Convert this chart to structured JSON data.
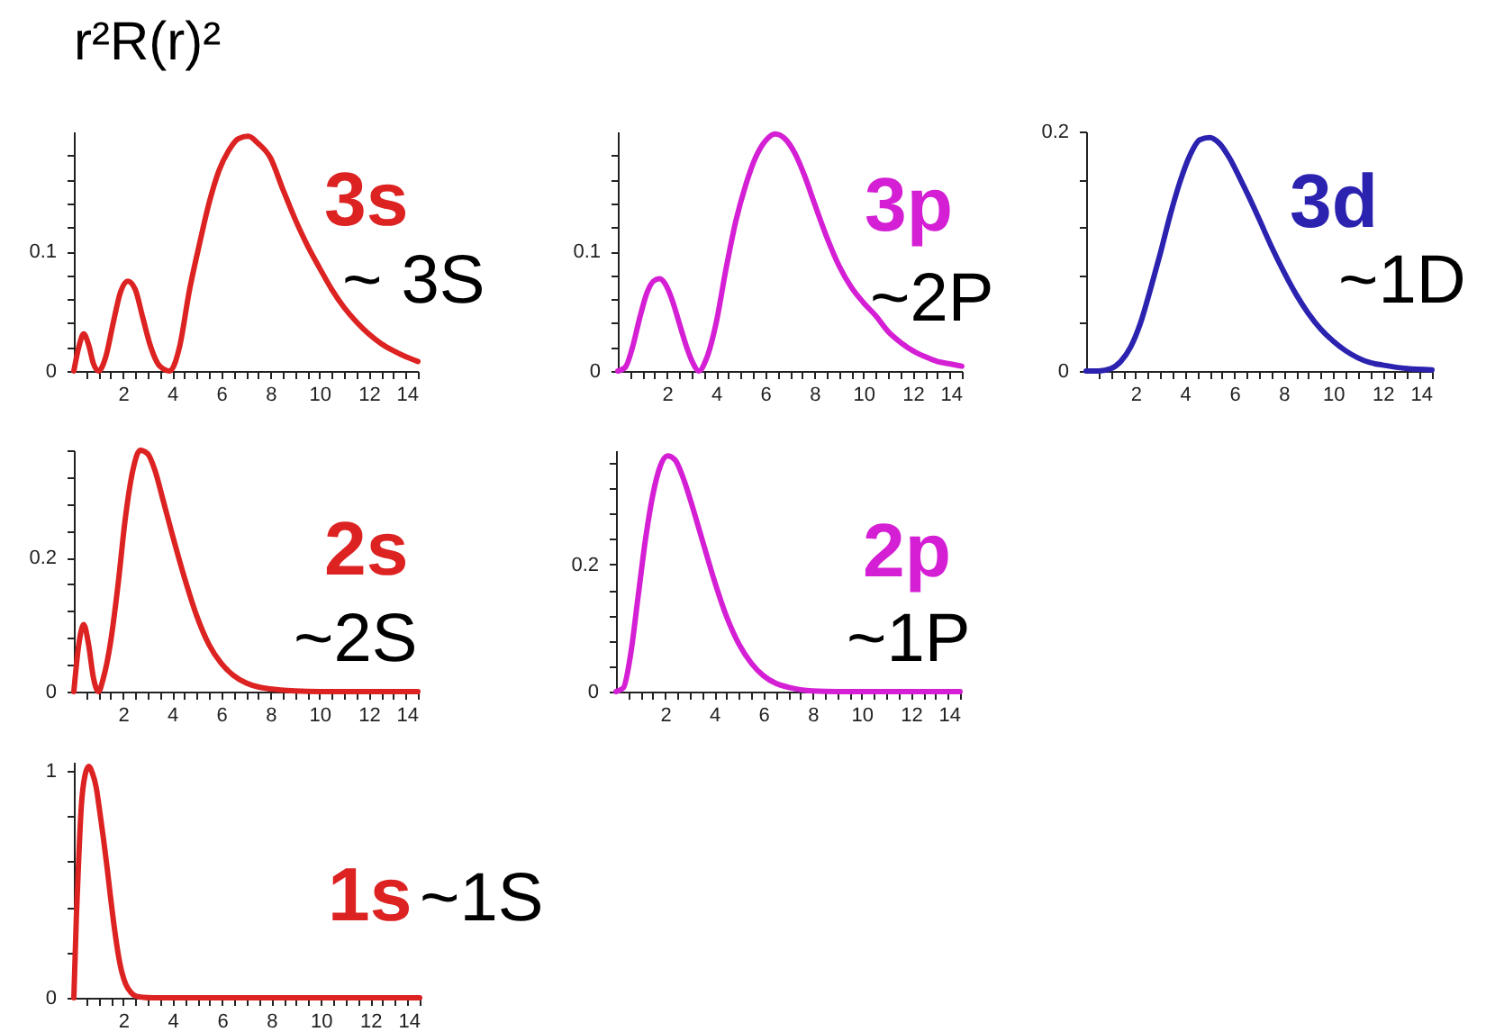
{
  "chart_data": [
    {
      "type": "line",
      "title": "r²R(r)²",
      "x": [
        0,
        0.2,
        0.4,
        0.6,
        0.8,
        1.0,
        1.3,
        1.6,
        1.9,
        2.2,
        2.5,
        2.8,
        3.1,
        3.5,
        3.9,
        4.3,
        4.7,
        5.1,
        5.5,
        5.9,
        6.3,
        6.7,
        7.1,
        7.5,
        8,
        8.5,
        9,
        9.5,
        10,
        10.5,
        11,
        11.5,
        12,
        12.5,
        13,
        13.5,
        14
      ],
      "series": [
        {
          "name": "3s",
          "color": "#dd2222",
          "values": [
            0,
            0.02,
            0.031,
            0.022,
            0.006,
            0,
            0.012,
            0.04,
            0.066,
            0.075,
            0.068,
            0.045,
            0.022,
            0.004,
            0,
            0.02,
            0.067,
            0.105,
            0.14,
            0.167,
            0.184,
            0.194,
            0.196,
            0.19,
            0.178,
            0.152,
            0.127,
            0.105,
            0.086,
            0.068,
            0.053,
            0.041,
            0.031,
            0.023,
            0.017,
            0.012,
            0.008
          ]
        }
      ],
      "annotations": [
        "~ 3S"
      ],
      "xlim": [
        0,
        14
      ],
      "ylim": [
        0,
        0.2
      ],
      "xticks": [
        {
          "value": 0.5,
          "label": null
        },
        {
          "value": 1,
          "label": null
        },
        {
          "value": 1.5,
          "label": null
        },
        2,
        {
          "value": 2.5,
          "label": null
        },
        {
          "value": 3,
          "label": null
        },
        {
          "value": 3.5,
          "label": null
        },
        4,
        {
          "value": 4.5,
          "label": null
        },
        {
          "value": 5,
          "label": null
        },
        {
          "value": 5.5,
          "label": null
        },
        6,
        {
          "value": 6.5,
          "label": null
        },
        {
          "value": 7,
          "label": null
        },
        {
          "value": 7.5,
          "label": null
        },
        8,
        {
          "value": 8.5,
          "label": null
        },
        {
          "value": 9,
          "label": null
        },
        {
          "value": 9.5,
          "label": null
        },
        10,
        {
          "value": 10.5,
          "label": null
        },
        {
          "value": 11,
          "label": null
        },
        {
          "value": 11.5,
          "label": null
        },
        12,
        {
          "value": 12.5,
          "label": null
        },
        {
          "value": 13,
          "label": null
        },
        {
          "value": 13.5,
          "label": null
        },
        14
      ],
      "yticks": [
        0,
        {
          "value": 0.02,
          "label": null
        },
        {
          "value": 0.04,
          "label": null
        },
        {
          "value": 0.06,
          "label": null
        },
        {
          "value": 0.08,
          "label": null
        },
        0.1,
        {
          "value": 0.12,
          "label": null
        },
        {
          "value": 0.14,
          "label": null
        },
        {
          "value": 0.16,
          "label": null
        },
        {
          "value": 0.18,
          "label": null
        }
      ]
    },
    {
      "type": "line",
      "x": [
        0,
        0.3,
        0.6,
        0.9,
        1.2,
        1.45,
        1.7,
        1.95,
        2.2,
        2.5,
        2.8,
        3.05,
        3.3,
        3.6,
        4.0,
        4.4,
        4.8,
        5.2,
        5.6,
        6.0,
        6.4,
        6.8,
        7.2,
        7.6,
        8.0,
        8.5,
        9.0,
        9.5,
        10,
        10.5,
        11,
        11.5,
        12,
        12.5,
        13,
        13.5,
        14
      ],
      "series": [
        {
          "name": "3p",
          "color": "#d41fd4",
          "values": [
            0,
            0.003,
            0.02,
            0.045,
            0.066,
            0.075,
            0.077,
            0.072,
            0.06,
            0.04,
            0.02,
            0.007,
            0,
            0.01,
            0.04,
            0.085,
            0.125,
            0.155,
            0.178,
            0.192,
            0.198,
            0.194,
            0.182,
            0.163,
            0.14,
            0.112,
            0.088,
            0.07,
            0.057,
            0.046,
            0.033,
            0.024,
            0.017,
            0.012,
            0.008,
            0.006,
            0.004
          ]
        }
      ],
      "annotations": [
        "~2P"
      ],
      "xlim": [
        0,
        14
      ],
      "ylim": [
        0,
        0.2
      ],
      "xticks": [
        {
          "value": 0.5,
          "label": null
        },
        {
          "value": 1,
          "label": null
        },
        {
          "value": 1.5,
          "label": null
        },
        2,
        {
          "value": 2.5,
          "label": null
        },
        {
          "value": 3,
          "label": null
        },
        {
          "value": 3.5,
          "label": null
        },
        4,
        {
          "value": 4.5,
          "label": null
        },
        {
          "value": 5,
          "label": null
        },
        {
          "value": 5.5,
          "label": null
        },
        6,
        {
          "value": 6.5,
          "label": null
        },
        {
          "value": 7,
          "label": null
        },
        {
          "value": 7.5,
          "label": null
        },
        8,
        {
          "value": 8.5,
          "label": null
        },
        {
          "value": 9,
          "label": null
        },
        {
          "value": 9.5,
          "label": null
        },
        10,
        {
          "value": 10.5,
          "label": null
        },
        {
          "value": 11,
          "label": null
        },
        {
          "value": 11.5,
          "label": null
        },
        12,
        {
          "value": 12.5,
          "label": null
        },
        {
          "value": 13,
          "label": null
        },
        {
          "value": 13.5,
          "label": null
        },
        14
      ],
      "yticks": [
        0,
        {
          "value": 0.02,
          "label": null
        },
        {
          "value": 0.04,
          "label": null
        },
        {
          "value": 0.06,
          "label": null
        },
        {
          "value": 0.08,
          "label": null
        },
        0.1,
        {
          "value": 0.12,
          "label": null
        },
        {
          "value": 0.14,
          "label": null
        },
        {
          "value": 0.16,
          "label": null
        },
        {
          "value": 0.18,
          "label": null
        }
      ]
    },
    {
      "type": "line",
      "x": [
        0,
        0.5,
        1,
        1.4,
        1.8,
        2.2,
        2.6,
        3,
        3.4,
        3.8,
        4.2,
        4.6,
        5,
        5.4,
        5.8,
        6.2,
        6.6,
        7,
        7.5,
        8,
        8.5,
        9,
        9.5,
        10,
        10.5,
        11,
        11.5,
        12,
        13,
        14
      ],
      "series": [
        {
          "name": "3d",
          "color": "#2b22b0",
          "values": [
            0,
            0,
            0.002,
            0.008,
            0.02,
            0.04,
            0.068,
            0.098,
            0.13,
            0.158,
            0.18,
            0.193,
            0.195,
            0.19,
            0.178,
            0.162,
            0.145,
            0.127,
            0.104,
            0.083,
            0.064,
            0.048,
            0.035,
            0.025,
            0.017,
            0.011,
            0.007,
            0.005,
            0.002,
            0.001
          ]
        }
      ],
      "annotations": [
        "~1D"
      ],
      "xlim": [
        0,
        14
      ],
      "ylim": [
        0,
        0.2
      ],
      "xticks": [
        {
          "value": 0.5,
          "label": null
        },
        {
          "value": 1,
          "label": null
        },
        {
          "value": 1.5,
          "label": null
        },
        2,
        {
          "value": 2.5,
          "label": null
        },
        {
          "value": 3,
          "label": null
        },
        {
          "value": 3.5,
          "label": null
        },
        4,
        {
          "value": 4.5,
          "label": null
        },
        {
          "value": 5,
          "label": null
        },
        {
          "value": 5.5,
          "label": null
        },
        6,
        {
          "value": 6.5,
          "label": null
        },
        {
          "value": 7,
          "label": null
        },
        {
          "value": 7.5,
          "label": null
        },
        8,
        {
          "value": 8.5,
          "label": null
        },
        {
          "value": 9,
          "label": null
        },
        {
          "value": 9.5,
          "label": null
        },
        10,
        {
          "value": 10.5,
          "label": null
        },
        {
          "value": 11,
          "label": null
        },
        {
          "value": 11.5,
          "label": null
        },
        12,
        {
          "value": 12.5,
          "label": null
        },
        {
          "value": 13,
          "label": null
        },
        {
          "value": 13.5,
          "label": null
        },
        14
      ],
      "yticks": [
        0,
        {
          "value": 0.04,
          "label": null
        },
        {
          "value": 0.08,
          "label": null
        },
        {
          "value": 0.12,
          "label": null
        },
        {
          "value": 0.16,
          "label": null
        },
        0.2
      ]
    },
    {
      "type": "line",
      "x": [
        0,
        0.2,
        0.4,
        0.6,
        0.8,
        1,
        1.2,
        1.5,
        1.8,
        2.1,
        2.4,
        2.7,
        3,
        3.3,
        3.6,
        4,
        4.5,
        5,
        5.5,
        6,
        6.5,
        7,
        7.5,
        8,
        9,
        10,
        14
      ],
      "series": [
        {
          "name": "2s",
          "color": "#dd2222",
          "values": [
            0,
            0.07,
            0.1,
            0.07,
            0.02,
            0,
            0.02,
            0.075,
            0.16,
            0.26,
            0.33,
            0.36,
            0.355,
            0.33,
            0.29,
            0.235,
            0.17,
            0.113,
            0.07,
            0.042,
            0.024,
            0.013,
            0.007,
            0.004,
            0.001,
            0,
            0
          ]
        }
      ],
      "annotations": [
        "~2S"
      ],
      "xlim": [
        0,
        14
      ],
      "ylim": [
        0,
        0.36
      ],
      "xticks": [
        {
          "value": 0.5,
          "label": null
        },
        {
          "value": 1,
          "label": null
        },
        {
          "value": 1.5,
          "label": null
        },
        2,
        {
          "value": 2.5,
          "label": null
        },
        {
          "value": 3,
          "label": null
        },
        {
          "value": 3.5,
          "label": null
        },
        4,
        {
          "value": 4.5,
          "label": null
        },
        {
          "value": 5,
          "label": null
        },
        {
          "value": 5.5,
          "label": null
        },
        6,
        {
          "value": 6.5,
          "label": null
        },
        {
          "value": 7,
          "label": null
        },
        {
          "value": 7.5,
          "label": null
        },
        8,
        {
          "value": 8.5,
          "label": null
        },
        {
          "value": 9,
          "label": null
        },
        {
          "value": 9.5,
          "label": null
        },
        10,
        {
          "value": 10.5,
          "label": null
        },
        {
          "value": 11,
          "label": null
        },
        {
          "value": 11.5,
          "label": null
        },
        12,
        {
          "value": 12.5,
          "label": null
        },
        {
          "value": 13,
          "label": null
        },
        {
          "value": 13.5,
          "label": null
        },
        14
      ],
      "yticks": [
        0,
        {
          "value": 0.04,
          "label": null
        },
        {
          "value": 0.08,
          "label": null
        },
        {
          "value": 0.12,
          "label": null
        },
        {
          "value": 0.16,
          "label": null
        },
        0.2,
        {
          "value": 0.24,
          "label": null
        },
        {
          "value": 0.28,
          "label": null
        },
        {
          "value": 0.32,
          "label": null
        },
        {
          "value": 0.36,
          "label": null
        }
      ]
    },
    {
      "type": "line",
      "x": [
        0,
        0.3,
        0.6,
        0.9,
        1.2,
        1.5,
        1.8,
        2.1,
        2.4,
        2.7,
        3,
        3.5,
        4,
        4.5,
        5,
        5.5,
        6,
        6.5,
        7,
        7.5,
        8,
        9,
        14
      ],
      "series": [
        {
          "name": "2p",
          "color": "#d41fd4",
          "values": [
            0,
            0.006,
            0.06,
            0.15,
            0.24,
            0.31,
            0.355,
            0.371,
            0.365,
            0.34,
            0.305,
            0.24,
            0.175,
            0.118,
            0.075,
            0.045,
            0.025,
            0.013,
            0.007,
            0.003,
            0.001,
            0,
            0
          ]
        }
      ],
      "annotations": [
        "~1P"
      ],
      "xlim": [
        0,
        14
      ],
      "ylim": [
        0,
        0.38
      ],
      "xticks": [
        {
          "value": 0.5,
          "label": null
        },
        {
          "value": 1,
          "label": null
        },
        {
          "value": 1.5,
          "label": null
        },
        2,
        {
          "value": 2.5,
          "label": null
        },
        {
          "value": 3,
          "label": null
        },
        {
          "value": 3.5,
          "label": null
        },
        4,
        {
          "value": 4.5,
          "label": null
        },
        {
          "value": 5,
          "label": null
        },
        {
          "value": 5.5,
          "label": null
        },
        6,
        {
          "value": 6.5,
          "label": null
        },
        {
          "value": 7,
          "label": null
        },
        {
          "value": 7.5,
          "label": null
        },
        8,
        {
          "value": 8.5,
          "label": null
        },
        {
          "value": 9,
          "label": null
        },
        {
          "value": 9.5,
          "label": null
        },
        10,
        {
          "value": 10.5,
          "label": null
        },
        {
          "value": 11,
          "label": null
        },
        {
          "value": 11.5,
          "label": null
        },
        12,
        {
          "value": 12.5,
          "label": null
        },
        {
          "value": 13,
          "label": null
        },
        {
          "value": 13.5,
          "label": null
        },
        14
      ],
      "yticks": [
        0,
        {
          "value": 0.04,
          "label": null
        },
        {
          "value": 0.08,
          "label": null
        },
        {
          "value": 0.12,
          "label": null
        },
        {
          "value": 0.16,
          "label": null
        },
        0.2,
        {
          "value": 0.24,
          "label": null
        },
        {
          "value": 0.28,
          "label": null
        },
        {
          "value": 0.32,
          "label": null
        },
        {
          "value": 0.36,
          "label": null
        }
      ]
    },
    {
      "type": "line",
      "x": [
        0,
        0.1,
        0.2,
        0.3,
        0.45,
        0.6,
        0.75,
        0.9,
        1.05,
        1.2,
        1.35,
        1.5,
        1.65,
        1.8,
        1.95,
        2.1,
        2.3,
        2.5,
        2.8,
        3.2,
        14
      ],
      "series": [
        {
          "name": "1s",
          "color": "#dd2222",
          "values": [
            0,
            0.35,
            0.62,
            0.84,
            0.98,
            1.02,
            0.99,
            0.93,
            0.82,
            0.7,
            0.57,
            0.43,
            0.3,
            0.19,
            0.11,
            0.06,
            0.025,
            0.008,
            0.002,
            0,
            0
          ]
        }
      ],
      "annotations": [
        "~1S"
      ],
      "xlim": [
        0,
        14
      ],
      "ylim": [
        0,
        1.04
      ],
      "xticks": [
        {
          "value": 0.5,
          "label": null
        },
        {
          "value": 1,
          "label": null
        },
        {
          "value": 1.5,
          "label": null
        },
        2,
        {
          "value": 2.5,
          "label": null
        },
        {
          "value": 3,
          "label": null
        },
        {
          "value": 3.5,
          "label": null
        },
        4,
        {
          "value": 4.5,
          "label": null
        },
        {
          "value": 5,
          "label": null
        },
        {
          "value": 5.5,
          "label": null
        },
        6,
        {
          "value": 6.5,
          "label": null
        },
        {
          "value": 7,
          "label": null
        },
        {
          "value": 7.5,
          "label": null
        },
        8,
        {
          "value": 8.5,
          "label": null
        },
        {
          "value": 9,
          "label": null
        },
        {
          "value": 9.5,
          "label": null
        },
        10,
        {
          "value": 10.5,
          "label": null
        },
        {
          "value": 11,
          "label": null
        },
        {
          "value": 11.5,
          "label": null
        },
        12,
        {
          "value": 12.5,
          "label": null
        },
        {
          "value": 13,
          "label": null
        },
        {
          "value": 13.5,
          "label": null
        },
        14
      ],
      "yticks": [
        0,
        {
          "value": 0.2,
          "label": null
        },
        {
          "value": 0.4,
          "label": null
        },
        {
          "value": 0.6,
          "label": null
        },
        {
          "value": 0.8,
          "label": null
        },
        1
      ]
    }
  ]
}
